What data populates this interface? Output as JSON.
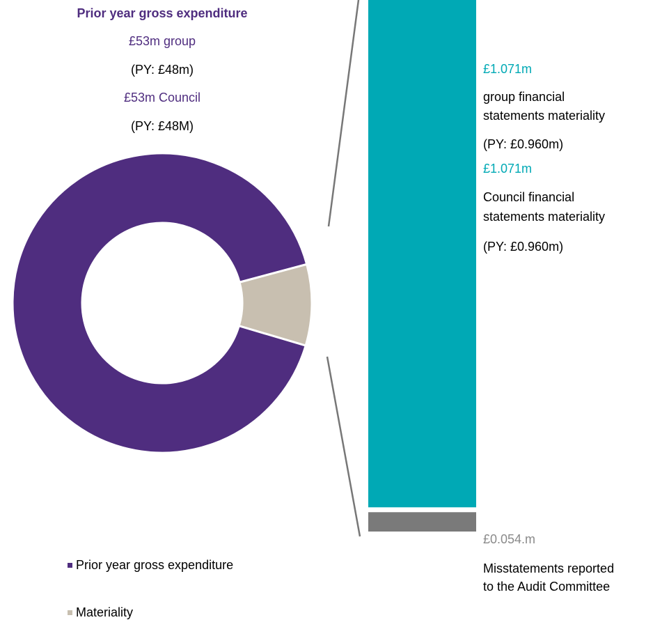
{
  "chart_data": [
    {
      "type": "pie",
      "donut": true,
      "title": "Prior year gross expenditure",
      "annotations": [
        "£53m group",
        "(PY: £48m)",
        "£53m Council",
        "(PY: £48M)"
      ],
      "categories": [
        "Prior year gross expenditure",
        "Materiality"
      ],
      "values": [
        91.25,
        8.75
      ],
      "colors": [
        "#4f2d7f",
        "#c8bfb0"
      ],
      "legend": "bottom-left"
    },
    {
      "type": "bar",
      "stacked": true,
      "values": [
        4.1,
        95.9
      ],
      "colors": [
        "#7a7a7a",
        "#00a9b5"
      ],
      "ylim": [
        0,
        100
      ],
      "annotations": [
        [
          "£0.054.m",
          "Misstatements reported",
          "to the Audit Committee"
        ],
        [
          "£1.071m",
          "group financial",
          "statements materiality",
          "(PY: £0.960m)",
          "£1.071m",
          "Council financial",
          "statements materiality",
          "(PY: £0.960m)"
        ]
      ]
    }
  ]
}
